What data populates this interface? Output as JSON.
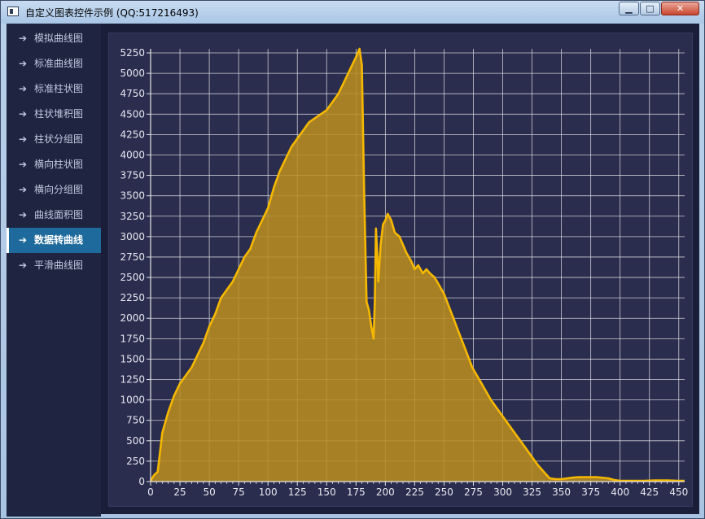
{
  "window": {
    "title": "自定义图表控件示例 (QQ:517216493)",
    "minimize": "▁",
    "maximize": "□",
    "close": "✕"
  },
  "sidebar": {
    "items": [
      {
        "label": "模拟曲线图",
        "icon": "arrow-right-icon",
        "active": false
      },
      {
        "label": "标准曲线图",
        "icon": "arrow-right-icon",
        "active": false
      },
      {
        "label": "标准柱状图",
        "icon": "arrow-right-icon",
        "active": false
      },
      {
        "label": "柱状堆积图",
        "icon": "arrow-right-icon",
        "active": false
      },
      {
        "label": "柱状分组图",
        "icon": "arrow-right-icon",
        "active": false
      },
      {
        "label": "横向柱状图",
        "icon": "arrow-right-icon",
        "active": false
      },
      {
        "label": "横向分组图",
        "icon": "arrow-right-icon",
        "active": false
      },
      {
        "label": "曲线面积图",
        "icon": "arrow-right-icon",
        "active": false
      },
      {
        "label": "数据转曲线",
        "icon": "arrow-right-icon",
        "active": true
      },
      {
        "label": "平滑曲线图",
        "icon": "arrow-right-icon",
        "active": false
      }
    ]
  },
  "colors": {
    "line": "#f5b800",
    "fill": "#b88c20",
    "grid": "#e6e6e6",
    "plot_bg": "#2a2d4e",
    "active_item": "#1f6a9c"
  },
  "chart_data": {
    "type": "area",
    "grid": true,
    "xlim": [
      0,
      455
    ],
    "ylim": [
      0,
      5300
    ],
    "x_ticks": [
      0,
      25,
      50,
      75,
      100,
      125,
      150,
      175,
      200,
      225,
      250,
      275,
      300,
      325,
      350,
      375,
      400,
      425,
      450
    ],
    "y_ticks": [
      0,
      250,
      500,
      750,
      1000,
      1250,
      1500,
      1750,
      2000,
      2250,
      2500,
      2750,
      3000,
      3250,
      3500,
      3750,
      4000,
      4250,
      4500,
      4750,
      5000,
      5250
    ],
    "x": [
      0,
      3,
      6,
      10,
      15,
      20,
      25,
      30,
      35,
      40,
      45,
      50,
      55,
      60,
      65,
      70,
      75,
      80,
      85,
      90,
      95,
      100,
      105,
      110,
      115,
      120,
      125,
      130,
      135,
      140,
      145,
      150,
      155,
      160,
      165,
      170,
      175,
      178,
      180,
      182,
      184,
      186,
      188,
      190,
      191,
      192,
      193,
      194,
      196,
      198,
      200,
      202,
      205,
      208,
      212,
      215,
      218,
      220,
      222,
      225,
      228,
      232,
      235,
      238,
      242,
      246,
      250,
      254,
      258,
      262,
      266,
      270,
      274,
      278,
      282,
      286,
      290,
      295,
      300,
      305,
      310,
      315,
      320,
      325,
      330,
      335,
      340,
      345,
      350,
      355,
      360,
      365,
      370,
      380,
      390,
      395,
      400,
      410,
      420,
      430,
      440,
      450,
      455
    ],
    "y": [
      10,
      80,
      120,
      600,
      850,
      1050,
      1200,
      1300,
      1400,
      1550,
      1700,
      1900,
      2050,
      2250,
      2350,
      2450,
      2600,
      2750,
      2850,
      3050,
      3200,
      3350,
      3600,
      3800,
      3950,
      4100,
      4200,
      4300,
      4400,
      4450,
      4500,
      4550,
      4650,
      4750,
      4900,
      5050,
      5200,
      5300,
      5100,
      3500,
      2200,
      2100,
      1900,
      1750,
      2200,
      3100,
      2800,
      2450,
      2900,
      3150,
      3200,
      3280,
      3200,
      3050,
      3000,
      2900,
      2800,
      2750,
      2700,
      2600,
      2650,
      2550,
      2600,
      2550,
      2500,
      2400,
      2300,
      2150,
      2000,
      1850,
      1700,
      1550,
      1400,
      1300,
      1200,
      1100,
      1000,
      900,
      800,
      700,
      600,
      500,
      400,
      300,
      200,
      120,
      40,
      30,
      30,
      40,
      50,
      55,
      55,
      55,
      40,
      20,
      10,
      10,
      10,
      15,
      15,
      10,
      10
    ]
  }
}
